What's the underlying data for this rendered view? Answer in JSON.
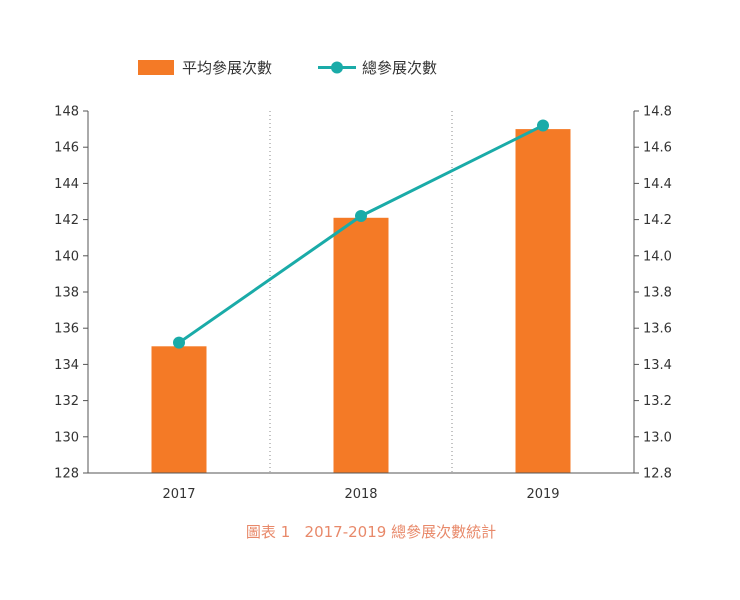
{
  "chart_data": {
    "type": "bar",
    "categories": [
      "2017",
      "2018",
      "2019"
    ],
    "series": [
      {
        "name": "平均參展次數",
        "kind": "bar",
        "axis": "left",
        "values": [
          135,
          142.1,
          147
        ],
        "color": "#F47A26"
      },
      {
        "name": "總參展次數",
        "kind": "line",
        "axis": "right",
        "values": [
          13.52,
          14.22,
          14.72
        ],
        "color": "#1AABA8"
      }
    ],
    "y_left": {
      "min": 128,
      "max": 148,
      "ticks": [
        "128",
        "130",
        "132",
        "134",
        "136",
        "138",
        "140",
        "142",
        "144",
        "146",
        "148"
      ]
    },
    "y_right": {
      "min": 12.8,
      "max": 14.8,
      "ticks": [
        "12.8",
        "13.0",
        "13.2",
        "13.4",
        "13.6",
        "13.8",
        "14.0",
        "14.2",
        "14.4",
        "14.6",
        "14.8"
      ]
    },
    "grid": "vertical dotted separators between categories",
    "legend_position": "top",
    "caption": "圖表 1   2017-2019 總參展次數統計",
    "caption_color": "#E8896A"
  }
}
